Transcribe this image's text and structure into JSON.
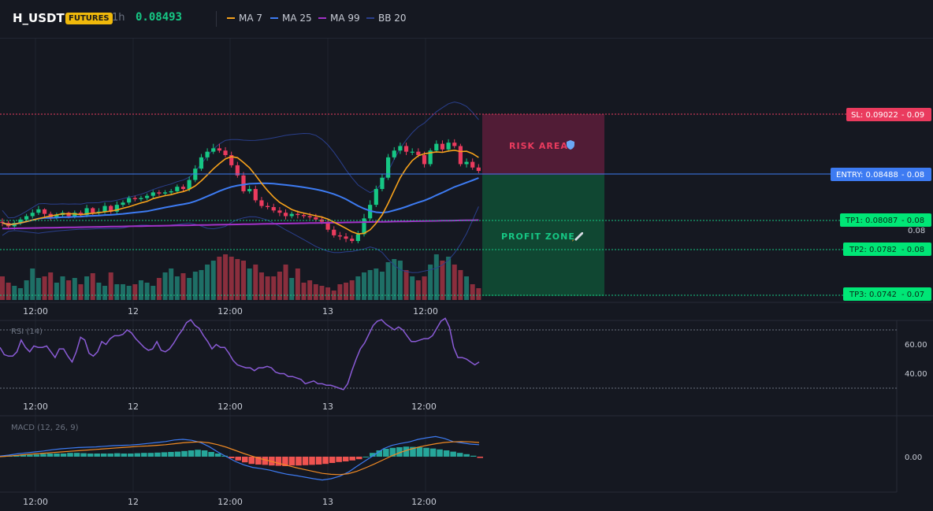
{
  "header": {
    "symbol": "H_USDT",
    "badge": "FUTURES",
    "timeframe": "1h",
    "price": "0.08493",
    "legend": [
      {
        "label": "MA 7",
        "color": "#f7a21b"
      },
      {
        "label": "MA 25",
        "color": "#3d7bf2"
      },
      {
        "label": "MA 99",
        "color": "#a232c8"
      },
      {
        "label": "BB 20",
        "color": "#2a3f8c"
      }
    ]
  },
  "colors": {
    "up": "#16c784",
    "down": "#ea3b5e",
    "vol_up": "#1e6f66",
    "vol_down": "#8a2e3d",
    "sl": "#ea3b5e",
    "entry": "#3d7bf2",
    "tp": "#16c784",
    "tp_label": "#00e676"
  },
  "x_axis_labels": [
    "12:00",
    "12",
    "12:00",
    "13",
    "12:00"
  ],
  "levels": {
    "sl": {
      "label": "SL: 0.09022",
      "tick": "0.09",
      "value": 0.09022
    },
    "entry": {
      "label": "ENTRY: 0.08488",
      "tick": "0.08",
      "value": 0.08488
    },
    "tp1": {
      "label": "TP1: 0.08087",
      "tick": "0.08",
      "value": 0.08087
    },
    "tp2": {
      "label": "TP2: 0.0782",
      "tick": "0.08",
      "value": 0.0782
    },
    "tp3": {
      "label": "TP3: 0.0742",
      "tick": "0.07",
      "value": 0.0742
    },
    "extra_tick": "0.08"
  },
  "zones": {
    "risk": "RISK AREA",
    "profit": "PROFIT ZONE",
    "risk_icon": "shield-emoji",
    "profit_icon": "rocket-emoji"
  },
  "rsi": {
    "label": "RSI (14)",
    "ticks": [
      "60.00",
      "40.00"
    ],
    "upper": 70,
    "lower": 30,
    "color": "#8a5bd6"
  },
  "macd": {
    "label": "MACD (12, 26, 9)",
    "tick": "0.00",
    "macd_color": "#3d7bf2",
    "signal_color": "#f08a24",
    "hist_pos": "#26a69a",
    "hist_neg": "#ef5350"
  },
  "chart_data": [
    {
      "type": "candlestick",
      "title": "H_USDT",
      "x_labels": [
        "12:00",
        "12",
        "12:00",
        "13",
        "12:00"
      ],
      "y_ticks": [
        "0.09",
        "0.08",
        "0.08",
        "0.08",
        "0.07"
      ],
      "series_open": [
        0.0807,
        0.0806,
        0.0803,
        0.0806,
        0.0809,
        0.0812,
        0.0815,
        0.0818,
        0.0814,
        0.0811,
        0.0813,
        0.0815,
        0.0812,
        0.0815,
        0.0813,
        0.0819,
        0.0815,
        0.0816,
        0.0821,
        0.0816,
        0.0822,
        0.0824,
        0.0828,
        0.0827,
        0.0828,
        0.083,
        0.0833,
        0.0832,
        0.0833,
        0.0834,
        0.0838,
        0.0836,
        0.0844,
        0.0854,
        0.0864,
        0.0869,
        0.0872,
        0.087,
        0.0866,
        0.0857,
        0.0848,
        0.0834,
        0.0836,
        0.0826,
        0.0821,
        0.082,
        0.0817,
        0.0815,
        0.0812,
        0.0814,
        0.0813,
        0.0812,
        0.0811,
        0.0809,
        0.0807,
        0.08,
        0.0795,
        0.0794,
        0.0792,
        0.079,
        0.0796,
        0.081,
        0.0822,
        0.0836,
        0.0846,
        0.0864,
        0.087,
        0.0874,
        0.0869,
        0.0869,
        0.0866,
        0.0858,
        0.087,
        0.0876,
        0.0871,
        0.0877,
        0.0874,
        0.0858,
        0.086,
        0.0855
      ],
      "series_close": [
        0.0806,
        0.0803,
        0.0806,
        0.0809,
        0.0812,
        0.0815,
        0.0818,
        0.0814,
        0.0811,
        0.0813,
        0.0815,
        0.0812,
        0.0815,
        0.0813,
        0.0819,
        0.0815,
        0.0816,
        0.0821,
        0.0816,
        0.0822,
        0.0824,
        0.0828,
        0.0827,
        0.0828,
        0.083,
        0.0833,
        0.0832,
        0.0833,
        0.0834,
        0.0838,
        0.0836,
        0.0844,
        0.0854,
        0.0864,
        0.0869,
        0.0872,
        0.087,
        0.0866,
        0.0857,
        0.0848,
        0.0834,
        0.0836,
        0.0826,
        0.0821,
        0.082,
        0.0817,
        0.0815,
        0.0812,
        0.0814,
        0.0813,
        0.0812,
        0.0811,
        0.0809,
        0.0807,
        0.08,
        0.0795,
        0.0794,
        0.0792,
        0.079,
        0.0796,
        0.081,
        0.0822,
        0.0836,
        0.0846,
        0.0864,
        0.087,
        0.0874,
        0.0869,
        0.0869,
        0.0866,
        0.0858,
        0.087,
        0.0876,
        0.0871,
        0.0877,
        0.0874,
        0.0858,
        0.086,
        0.0855,
        0.0852
      ],
      "series_high": [
        0.081,
        0.0808,
        0.0808,
        0.0811,
        0.0814,
        0.0818,
        0.0821,
        0.0819,
        0.0816,
        0.0815,
        0.0817,
        0.0816,
        0.0817,
        0.0817,
        0.0822,
        0.082,
        0.0819,
        0.0824,
        0.0822,
        0.0825,
        0.0826,
        0.083,
        0.083,
        0.083,
        0.0832,
        0.0835,
        0.0835,
        0.0835,
        0.0836,
        0.084,
        0.084,
        0.0847,
        0.0857,
        0.0867,
        0.0872,
        0.0876,
        0.0876,
        0.0873,
        0.0869,
        0.086,
        0.0851,
        0.0839,
        0.0839,
        0.0829,
        0.0824,
        0.0823,
        0.082,
        0.0818,
        0.0816,
        0.0817,
        0.0815,
        0.0815,
        0.0814,
        0.0812,
        0.081,
        0.0803,
        0.0798,
        0.0797,
        0.0795,
        0.0799,
        0.0814,
        0.0826,
        0.0839,
        0.0849,
        0.0867,
        0.0873,
        0.0877,
        0.0877,
        0.0872,
        0.0872,
        0.0869,
        0.0872,
        0.0879,
        0.0879,
        0.088,
        0.088,
        0.0876,
        0.0863,
        0.0863,
        0.0858
      ],
      "series_low": [
        0.0803,
        0.0801,
        0.08,
        0.0804,
        0.0807,
        0.081,
        0.0813,
        0.0811,
        0.0808,
        0.0809,
        0.0811,
        0.081,
        0.081,
        0.0811,
        0.0811,
        0.0813,
        0.0813,
        0.0814,
        0.0814,
        0.0814,
        0.082,
        0.0822,
        0.0825,
        0.0825,
        0.0826,
        0.0828,
        0.083,
        0.083,
        0.0831,
        0.0832,
        0.0834,
        0.0834,
        0.0842,
        0.0852,
        0.0861,
        0.0867,
        0.0868,
        0.0864,
        0.0855,
        0.0846,
        0.0832,
        0.0832,
        0.0824,
        0.0819,
        0.0818,
        0.0815,
        0.0812,
        0.0809,
        0.081,
        0.081,
        0.081,
        0.0809,
        0.0807,
        0.0805,
        0.0798,
        0.0793,
        0.0791,
        0.0789,
        0.0788,
        0.0788,
        0.0794,
        0.0808,
        0.082,
        0.0834,
        0.0844,
        0.0862,
        0.0867,
        0.0866,
        0.0866,
        0.0864,
        0.0855,
        0.0856,
        0.0868,
        0.0869,
        0.0869,
        0.0872,
        0.0856,
        0.0855,
        0.0853,
        0.085
      ],
      "volume": [
        30,
        22,
        18,
        15,
        25,
        40,
        28,
        30,
        35,
        22,
        30,
        25,
        28,
        20,
        30,
        34,
        22,
        18,
        35,
        20,
        20,
        18,
        20,
        25,
        22,
        18,
        28,
        35,
        40,
        30,
        34,
        28,
        36,
        38,
        45,
        50,
        55,
        58,
        55,
        52,
        50,
        40,
        45,
        35,
        30,
        30,
        36,
        45,
        28,
        40,
        22,
        25,
        20,
        18,
        16,
        12,
        20,
        22,
        25,
        30,
        35,
        38,
        40,
        36,
        48,
        52,
        50,
        38,
        30,
        25,
        30,
        45,
        58,
        50,
        55,
        45,
        38,
        30,
        20,
        15
      ]
    },
    {
      "type": "line",
      "title": "RSI (14)",
      "y_ticks": [
        "60.00",
        "40.00"
      ],
      "values": [
        58,
        53,
        52,
        52,
        55,
        63,
        58,
        55,
        59,
        58,
        58,
        59,
        55,
        51,
        57,
        57,
        52,
        48,
        55,
        65,
        63,
        54,
        52,
        55,
        62,
        60,
        64,
        66,
        66,
        67,
        70,
        68,
        64,
        61,
        58,
        56,
        57,
        62,
        56,
        55,
        57,
        61,
        66,
        70,
        75,
        77,
        73,
        71,
        66,
        62,
        57,
        60,
        58,
        58,
        54,
        49,
        46,
        45,
        44,
        44,
        42,
        44,
        44,
        45,
        44,
        41,
        40,
        40,
        38,
        38,
        37,
        36,
        33,
        34,
        35,
        33,
        33,
        32,
        32,
        31,
        30,
        29,
        33,
        42,
        50,
        57,
        61,
        67,
        73,
        76,
        77,
        74,
        72,
        70,
        72,
        70,
        66,
        62,
        62,
        63,
        64,
        64,
        66,
        71,
        76,
        78,
        72,
        58,
        51,
        51,
        50,
        48,
        46,
        48
      ],
      "values_note": "",
      "upper": 70,
      "lower": 30
    },
    {
      "type": "bar",
      "title": "MACD (12, 26, 9)",
      "y_ticks": [
        "0.00"
      ],
      "histogram": [
        0.2,
        0.3,
        0.5,
        0.7,
        0.6,
        0.7,
        0.9,
        1.0,
        1.0,
        1.0,
        1.2,
        1.2,
        1.1,
        1.0,
        1.0,
        1.0,
        1.0,
        1.1,
        1.0,
        1.0,
        1.1,
        1.2,
        1.2,
        1.3,
        1.4,
        1.5,
        1.6,
        1.8,
        2.0,
        2.2,
        2.0,
        1.5,
        1.0,
        0.3,
        -0.5,
        -1.2,
        -1.8,
        -2.3,
        -2.5,
        -2.6,
        -2.8,
        -2.9,
        -3.0,
        -2.8,
        -2.8,
        -2.7,
        -2.6,
        -2.5,
        -2.3,
        -2.0,
        -1.7,
        -1.5,
        -1.2,
        -0.8,
        0.0,
        1.2,
        2.0,
        2.5,
        2.8,
        3.0,
        3.2,
        3.1,
        3.0,
        2.8,
        2.6,
        2.3,
        2.0,
        1.6,
        1.2,
        0.8,
        0.3,
        -0.4
      ],
      "macd": [
        0.2,
        0.5,
        0.9,
        1.2,
        1.5,
        1.8,
        2.2,
        2.5,
        2.7,
        2.9,
        3.0,
        3.1,
        3.3,
        3.5,
        3.6,
        3.7,
        3.9,
        4.2,
        4.5,
        4.8,
        5.3,
        5.5,
        5.2,
        4.5,
        3.2,
        1.5,
        0.0,
        -1.5,
        -2.6,
        -3.4,
        -3.8,
        -4.3,
        -5.0,
        -5.6,
        -6.0,
        -6.5,
        -7.0,
        -7.4,
        -7.0,
        -6.2,
        -4.9,
        -3.0,
        -1.2,
        0.6,
        2.5,
        3.6,
        4.2,
        4.7,
        5.5,
        6.0,
        6.4,
        5.8,
        4.8,
        4.4,
        4.0,
        3.8
      ],
      "signal": [
        0.0,
        0.2,
        0.4,
        0.7,
        0.9,
        1.1,
        1.3,
        1.5,
        1.7,
        1.9,
        2.1,
        2.3,
        2.5,
        2.7,
        2.9,
        3.1,
        3.3,
        3.4,
        3.6,
        3.8,
        4.1,
        4.4,
        4.6,
        4.7,
        4.4,
        3.8,
        3.0,
        2.0,
        1.0,
        0.1,
        -0.7,
        -1.4,
        -2.1,
        -2.8,
        -3.5,
        -4.1,
        -4.7,
        -5.3,
        -5.6,
        -5.7,
        -5.4,
        -4.6,
        -3.5,
        -2.3,
        -1.0,
        0.3,
        1.4,
        2.3,
        3.0,
        3.6,
        4.1,
        4.5,
        4.7,
        4.8,
        4.7,
        4.5
      ]
    }
  ]
}
